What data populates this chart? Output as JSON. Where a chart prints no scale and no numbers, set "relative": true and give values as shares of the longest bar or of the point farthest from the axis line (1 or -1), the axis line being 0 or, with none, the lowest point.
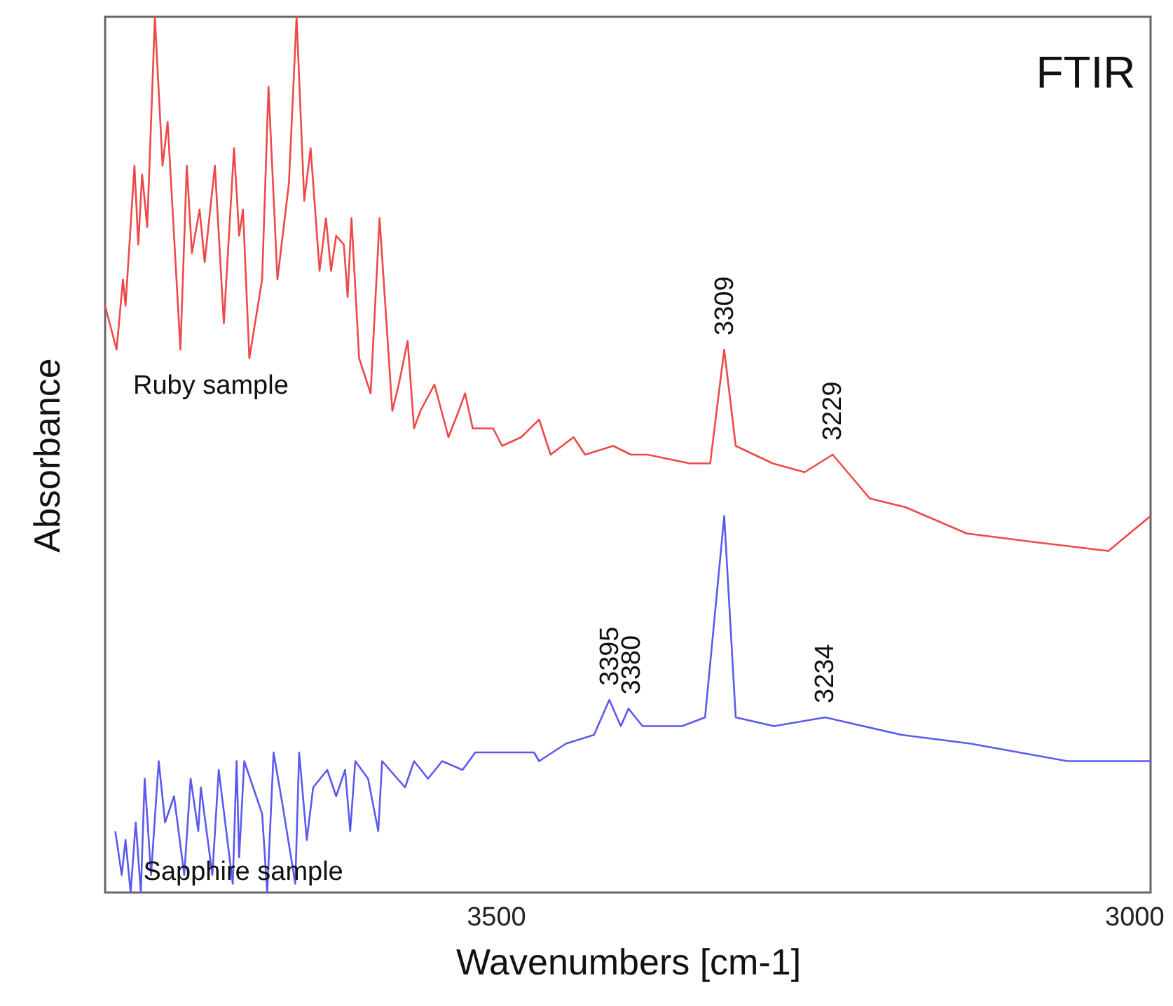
{
  "chart_data": {
    "type": "line",
    "title": "FTIR",
    "xlabel": "Wavenumbers [cm-1]",
    "ylabel": "Absorbance",
    "relative": true,
    "xlim": [
      3806,
      2987
    ],
    "xticks": [
      3500,
      3000
    ],
    "grid": false,
    "legend": false,
    "marker": "none",
    "line_style": "solid",
    "series": [
      {
        "name": "Ruby sample",
        "color": "#ee4848",
        "x": [
          3806,
          3797,
          3792,
          3790,
          3783,
          3780,
          3777,
          3773,
          3767,
          3761,
          3757,
          3747,
          3742,
          3738,
          3732,
          3728,
          3720,
          3713,
          3705,
          3701,
          3698,
          3693,
          3683,
          3678,
          3671,
          3662,
          3656,
          3650,
          3645,
          3638,
          3633,
          3629,
          3625,
          3619,
          3616,
          3613,
          3607,
          3598,
          3591,
          3581,
          3576,
          3569,
          3564,
          3559,
          3548,
          3537,
          3529,
          3524,
          3518,
          3502,
          3495,
          3480,
          3466,
          3457,
          3439,
          3430,
          3408,
          3394,
          3381,
          3348,
          3332,
          3321,
          3312,
          3283,
          3258,
          3236,
          3207,
          3179,
          3131,
          3077,
          3020,
          2987
        ],
        "values": [
          0.67,
          0.62,
          0.7,
          0.67,
          0.83,
          0.74,
          0.82,
          0.76,
          1.0,
          0.83,
          0.88,
          0.62,
          0.83,
          0.73,
          0.78,
          0.72,
          0.83,
          0.65,
          0.85,
          0.75,
          0.78,
          0.61,
          0.7,
          0.92,
          0.7,
          0.81,
          1.0,
          0.79,
          0.85,
          0.71,
          0.77,
          0.71,
          0.75,
          0.74,
          0.68,
          0.77,
          0.61,
          0.57,
          0.77,
          0.55,
          0.58,
          0.63,
          0.53,
          0.55,
          0.58,
          0.52,
          0.55,
          0.57,
          0.53,
          0.53,
          0.51,
          0.52,
          0.54,
          0.5,
          0.52,
          0.5,
          0.51,
          0.5,
          0.5,
          0.49,
          0.49,
          0.62,
          0.51,
          0.49,
          0.48,
          0.5,
          0.45,
          0.44,
          0.41,
          0.4,
          0.39,
          0.43
        ]
      },
      {
        "name": "Sapphire sample",
        "color": "#5a5aee",
        "x": [
          3798,
          3793,
          3790,
          3786,
          3782,
          3778,
          3775,
          3770,
          3764,
          3759,
          3752,
          3744,
          3739,
          3733,
          3731,
          3722,
          3717,
          3706,
          3703,
          3701,
          3697,
          3683,
          3679,
          3674,
          3667,
          3657,
          3654,
          3648,
          3643,
          3632,
          3625,
          3618,
          3614,
          3610,
          3600,
          3592,
          3589,
          3571,
          3564,
          3553,
          3542,
          3526,
          3516,
          3499,
          3470,
          3466,
          3445,
          3423,
          3411,
          3402,
          3396,
          3385,
          3354,
          3336,
          3321,
          3312,
          3282,
          3242,
          3182,
          3128,
          3052,
          2987
        ],
        "values": [
          0.07,
          0.02,
          0.06,
          0,
          0.08,
          0,
          0.13,
          0.02,
          0.15,
          0.08,
          0.11,
          0.02,
          0.13,
          0.07,
          0.12,
          0.02,
          0.14,
          0.01,
          0.15,
          0.04,
          0.15,
          0.09,
          0,
          0.16,
          0.1,
          0.01,
          0.16,
          0.06,
          0.12,
          0.14,
          0.11,
          0.14,
          0.07,
          0.15,
          0.13,
          0.07,
          0.15,
          0.12,
          0.15,
          0.13,
          0.15,
          0.14,
          0.16,
          0.16,
          0.16,
          0.15,
          0.17,
          0.18,
          0.22,
          0.19,
          0.21,
          0.19,
          0.19,
          0.2,
          0.43,
          0.2,
          0.19,
          0.2,
          0.18,
          0.17,
          0.15,
          0.15
        ]
      }
    ],
    "annotations": [
      {
        "text": "3309",
        "x": 3321,
        "y": 0.62
      },
      {
        "text": "3229",
        "x": 3236,
        "y": 0.5
      },
      {
        "text": "3395",
        "x": 3411,
        "y": 0.22
      },
      {
        "text": "3380",
        "x": 3394,
        "y": 0.21
      },
      {
        "text": "3234",
        "x": 3242,
        "y": 0.2
      }
    ]
  }
}
